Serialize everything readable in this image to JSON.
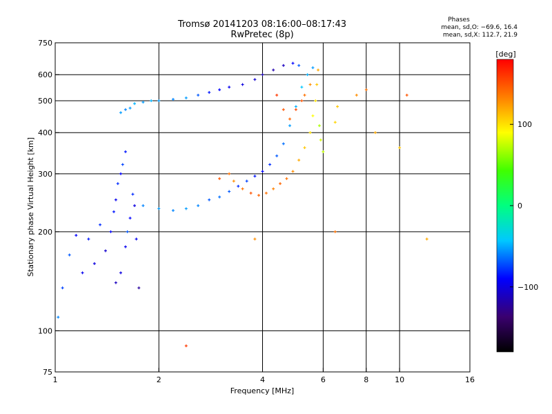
{
  "header": {
    "title_line1": "Tromsø 20141203 08:16:00–08:17:43",
    "title_line2": "RwPretec (8p)",
    "stats_title": "Phases",
    "stats_o": "mean, sd,O: −69.6, 16.4",
    "stats_x": "mean, sd,X: 112.7, 21.9"
  },
  "chart_data": {
    "type": "scatter",
    "title": "Tromsø 20141203 08:16:00–08:17:43",
    "subtitle": "RwPretec (8p)",
    "xlabel": "Frequency [MHz]",
    "ylabel": "Stationary phase Virtual Height [km]",
    "xscale": "log",
    "yscale": "log",
    "xlim": [
      1,
      16
    ],
    "ylim": [
      75,
      750
    ],
    "xticks": [
      1,
      2,
      4,
      6,
      8,
      10,
      16
    ],
    "xtick_labels": [
      "1",
      "2",
      "4",
      "6",
      "8",
      "10",
      "16"
    ],
    "xgrid": [
      2,
      4,
      6,
      8,
      10
    ],
    "yticks": [
      75,
      100,
      200,
      300,
      400,
      500,
      600,
      750
    ],
    "ytick_labels": [
      "75",
      "100",
      "200",
      "300",
      "400",
      "500",
      "600",
      "750"
    ],
    "ygrid": [
      100,
      200,
      300,
      400,
      500,
      600
    ],
    "grid": true,
    "colorbar": {
      "label": "[deg]",
      "range": [
        -180,
        180
      ],
      "ticks": [
        100,
        0,
        -100
      ],
      "tick_labels": [
        "100",
        "0",
        "−100"
      ]
    },
    "series": [
      {
        "name": "O",
        "points": [
          [
            1.02,
            110,
            -60
          ],
          [
            1.05,
            135,
            -75
          ],
          [
            1.1,
            170,
            -70
          ],
          [
            1.15,
            195,
            -90
          ],
          [
            1.2,
            150,
            -95
          ],
          [
            1.25,
            190,
            -85
          ],
          [
            1.3,
            160,
            -100
          ],
          [
            1.35,
            210,
            -80
          ],
          [
            1.4,
            175,
            -105
          ],
          [
            1.45,
            200,
            -90
          ],
          [
            1.48,
            230,
            -85
          ],
          [
            1.5,
            250,
            -95
          ],
          [
            1.52,
            280,
            -80
          ],
          [
            1.55,
            300,
            -90
          ],
          [
            1.57,
            320,
            -75
          ],
          [
            1.6,
            350,
            -85
          ],
          [
            1.5,
            140,
            -110
          ],
          [
            1.55,
            150,
            -100
          ],
          [
            1.6,
            180,
            -95
          ],
          [
            1.62,
            200,
            -70
          ],
          [
            1.65,
            220,
            -90
          ],
          [
            1.68,
            260,
            -80
          ],
          [
            1.7,
            240,
            -100
          ],
          [
            1.72,
            190,
            -95
          ],
          [
            1.75,
            135,
            -120
          ],
          [
            1.55,
            460,
            -55
          ],
          [
            1.6,
            470,
            -60
          ],
          [
            1.65,
            475,
            -55
          ],
          [
            1.7,
            490,
            -50
          ],
          [
            1.8,
            495,
            -55
          ],
          [
            1.9,
            500,
            -50
          ],
          [
            2.0,
            500,
            -55
          ],
          [
            2.2,
            505,
            -60
          ],
          [
            2.4,
            510,
            -55
          ],
          [
            2.6,
            520,
            -70
          ],
          [
            2.8,
            530,
            -85
          ],
          [
            3.0,
            540,
            -90
          ],
          [
            3.2,
            550,
            -95
          ],
          [
            3.5,
            560,
            -100
          ],
          [
            3.8,
            580,
            -105
          ],
          [
            4.0,
            600,
            -110
          ],
          [
            4.3,
            620,
            -115
          ],
          [
            4.6,
            640,
            -110
          ],
          [
            4.9,
            650,
            -90
          ],
          [
            5.1,
            640,
            -70
          ],
          [
            1.8,
            240,
            -60
          ],
          [
            2.0,
            235,
            -55
          ],
          [
            2.2,
            232,
            -60
          ],
          [
            2.4,
            235,
            -55
          ],
          [
            2.6,
            240,
            -60
          ],
          [
            2.8,
            250,
            -70
          ],
          [
            3.0,
            255,
            -65
          ],
          [
            3.2,
            265,
            -70
          ],
          [
            3.4,
            275,
            -80
          ],
          [
            3.6,
            285,
            -75
          ],
          [
            3.8,
            295,
            -85
          ],
          [
            4.0,
            305,
            -90
          ],
          [
            4.2,
            320,
            -80
          ],
          [
            4.4,
            340,
            -70
          ],
          [
            4.6,
            370,
            -65
          ],
          [
            4.8,
            420,
            -55
          ],
          [
            5.0,
            480,
            -50
          ],
          [
            5.2,
            550,
            -45
          ],
          [
            5.4,
            600,
            -50
          ],
          [
            5.6,
            630,
            -55
          ]
        ]
      },
      {
        "name": "X",
        "points": [
          [
            3.0,
            290,
            150
          ],
          [
            3.2,
            300,
            140
          ],
          [
            3.3,
            285,
            130
          ],
          [
            3.5,
            270,
            140
          ],
          [
            3.7,
            262,
            150
          ],
          [
            3.9,
            258,
            145
          ],
          [
            4.1,
            262,
            140
          ],
          [
            4.3,
            270,
            135
          ],
          [
            4.5,
            280,
            145
          ],
          [
            4.7,
            290,
            140
          ],
          [
            4.9,
            305,
            130
          ],
          [
            5.1,
            330,
            120
          ],
          [
            5.3,
            360,
            110
          ],
          [
            5.5,
            400,
            100
          ],
          [
            5.6,
            450,
            90
          ],
          [
            5.7,
            500,
            100
          ],
          [
            5.75,
            560,
            110
          ],
          [
            5.8,
            620,
            120
          ],
          [
            5.5,
            560,
            130
          ],
          [
            5.3,
            520,
            140
          ],
          [
            5.9,
            380,
            80
          ],
          [
            5.85,
            420,
            70
          ],
          [
            6.0,
            350,
            75
          ],
          [
            6.6,
            480,
            110
          ],
          [
            6.5,
            430,
            105
          ],
          [
            7.5,
            520,
            130
          ],
          [
            8.0,
            540,
            140
          ],
          [
            8.5,
            400,
            120
          ],
          [
            10.5,
            520,
            150
          ],
          [
            10.0,
            360,
            110
          ],
          [
            4.4,
            520,
            160
          ],
          [
            4.6,
            470,
            150
          ],
          [
            4.8,
            440,
            145
          ],
          [
            5.0,
            470,
            155
          ],
          [
            5.2,
            500,
            150
          ],
          [
            2.4,
            90,
            160
          ],
          [
            3.8,
            190,
            130
          ],
          [
            6.5,
            200,
            140
          ],
          [
            12.0,
            190,
            120
          ]
        ]
      }
    ]
  }
}
